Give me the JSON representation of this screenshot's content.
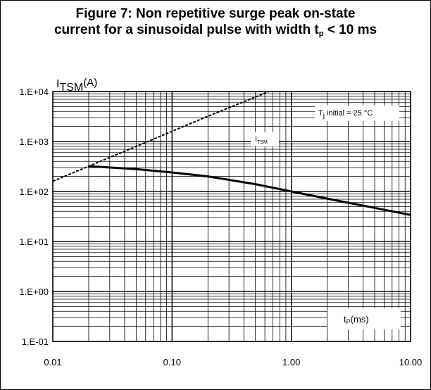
{
  "figure": {
    "title_line1": "Figure 7: Non repetitive surge peak on-state",
    "title_line2_main": "current for a sinusoidal pulse with width t",
    "title_line2_sub": "p",
    "title_line2_end": " < 10 ms"
  },
  "chart_data": {
    "type": "line",
    "xscale": "log",
    "yscale": "log",
    "xlim": [
      0.01,
      10
    ],
    "ylim": [
      0.1,
      10000
    ],
    "x_ticks": [
      "0.01",
      "0.10",
      "1.00",
      "10.00"
    ],
    "y_ticks": [
      "1.E-01",
      "1.E+00",
      "1.E+01",
      "1.E+02",
      "1.E+03",
      "1.E+04"
    ],
    "ylabel_main": "I",
    "ylabel_sub": "TSM",
    "ylabel_unit": "(A)",
    "xlabel_main": "t",
    "xlabel_sub": "P",
    "xlabel_unit": "(ms)",
    "grid": true,
    "annotations": {
      "tj_main": "T",
      "tj_sub": "j",
      "tj_rest": " initial = 25 °C",
      "itsm_main": "I",
      "itsm_sub": "TSM"
    },
    "series": [
      {
        "style": "solid",
        "x": [
          0.02,
          0.05,
          0.1,
          0.2,
          0.5,
          1.0,
          2.0,
          5.0,
          10.0
        ],
        "y": [
          320,
          280,
          240,
          200,
          140,
          100,
          72,
          47,
          34
        ]
      },
      {
        "style": "dashed",
        "x": [
          0.01,
          0.02,
          0.05,
          0.1,
          0.2,
          0.65
        ],
        "y": [
          160,
          320,
          800,
          1600,
          3200,
          10000
        ]
      }
    ]
  }
}
